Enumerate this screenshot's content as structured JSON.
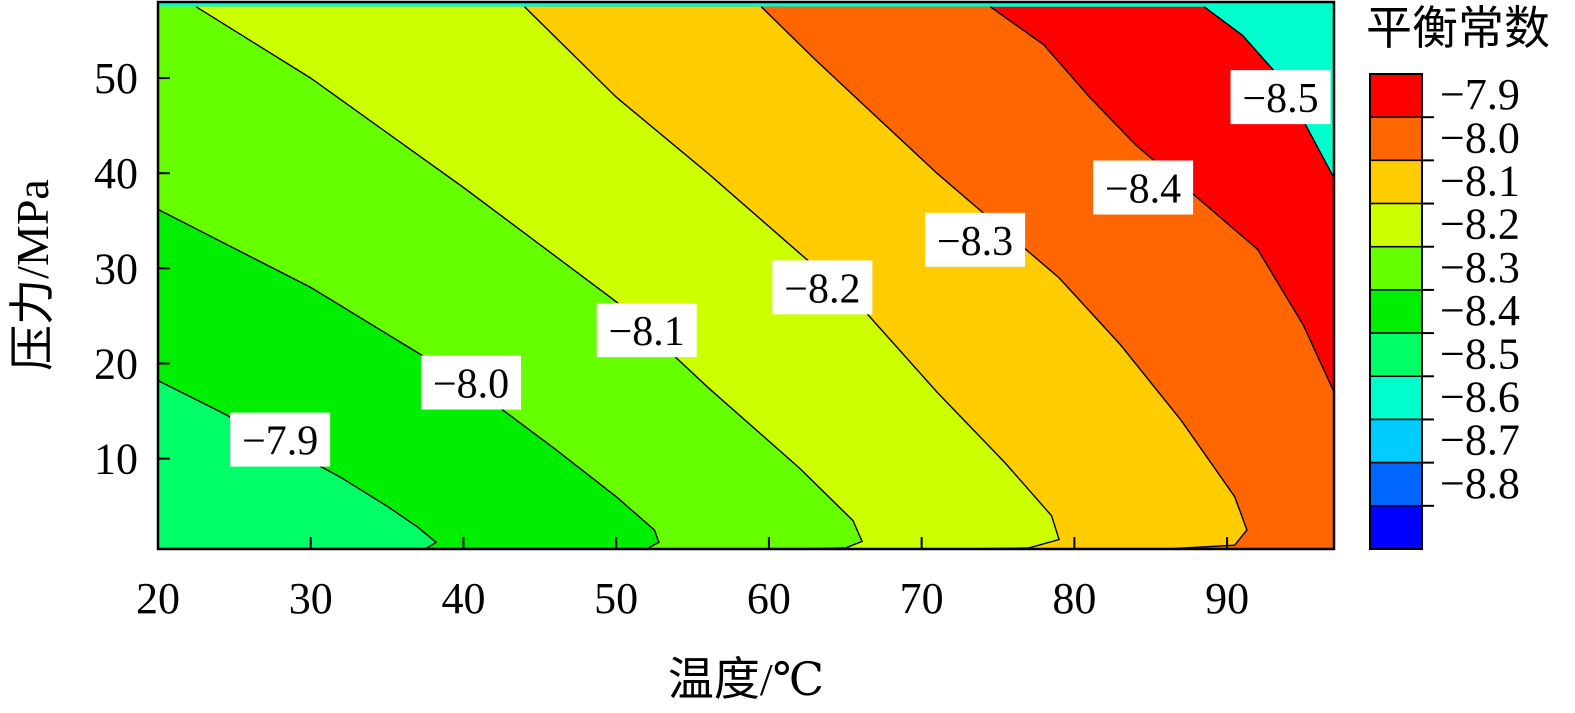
{
  "chart_data": {
    "type": "contour",
    "xlabel": "温度/℃",
    "ylabel": "压力/MPa",
    "xlim": [
      20,
      97
    ],
    "ylim": [
      0.5,
      58
    ],
    "xticks": [
      {
        "value": 20,
        "label": "20"
      },
      {
        "value": 30,
        "label": "30"
      },
      {
        "value": 40,
        "label": "40"
      },
      {
        "value": 50,
        "label": "50"
      },
      {
        "value": 60,
        "label": "60"
      },
      {
        "value": 70,
        "label": "70"
      },
      {
        "value": 80,
        "label": "80"
      },
      {
        "value": 90,
        "label": "90"
      }
    ],
    "yticks": [
      {
        "value": 10,
        "label": "10"
      },
      {
        "value": 20,
        "label": "20"
      },
      {
        "value": 30,
        "label": "30"
      },
      {
        "value": 40,
        "label": "40"
      },
      {
        "value": 50,
        "label": "50"
      }
    ],
    "colorbar": {
      "title": "平衡常数",
      "levels": [
        {
          "label": "−7.9",
          "color": "#ff0000"
        },
        {
          "label": "−8.0",
          "color": "#ff6600"
        },
        {
          "label": "−8.1",
          "color": "#ffcc00"
        },
        {
          "label": "−8.2",
          "color": "#ccff00"
        },
        {
          "label": "−8.3",
          "color": "#66ff00"
        },
        {
          "label": "−8.4",
          "color": "#00ee00"
        },
        {
          "label": "−8.5",
          "color": "#00ff66"
        },
        {
          "label": "−8.6",
          "color": "#00ffcc"
        },
        {
          "label": "−8.7",
          "color": "#00ccff"
        },
        {
          "label": "−8.8",
          "color": "#0066ff"
        },
        {
          "label": "",
          "color": "#0000ff"
        }
      ]
    },
    "contours": [
      {
        "level": "−7.9",
        "label_at": [
          28,
          12
        ],
        "points": [
          [
            20,
            18.2
          ],
          [
            24,
            15
          ],
          [
            28,
            11.5
          ],
          [
            32,
            8
          ],
          [
            35,
            5
          ],
          [
            37,
            2.8
          ],
          [
            38.2,
            1.2
          ],
          [
            37.5,
            0.5
          ]
        ]
      },
      {
        "level": "−8.0",
        "label_at": [
          40.5,
          18
        ],
        "points": [
          [
            20,
            36.2
          ],
          [
            30,
            28
          ],
          [
            40,
            18.2
          ],
          [
            46,
            11
          ],
          [
            50,
            6
          ],
          [
            52.5,
            2.5
          ],
          [
            52.8,
            1.2
          ],
          [
            52,
            0.5
          ]
        ]
      },
      {
        "level": "−8.1",
        "label_at": [
          52,
          23.5
        ],
        "points": [
          [
            22.5,
            57.5
          ],
          [
            30,
            50
          ],
          [
            40,
            38.5
          ],
          [
            50,
            26.5
          ],
          [
            56,
            17.5
          ],
          [
            62,
            9
          ],
          [
            65.5,
            3.5
          ],
          [
            66.1,
            1.3
          ],
          [
            65,
            0.6
          ],
          [
            62,
            0.5
          ]
        ]
      },
      {
        "level": "−8.2",
        "label_at": [
          63.5,
          28
        ],
        "points": [
          [
            44,
            57.5
          ],
          [
            50,
            48
          ],
          [
            56,
            40
          ],
          [
            61,
            33
          ],
          [
            66,
            26
          ],
          [
            71,
            17
          ],
          [
            75.5,
            9.5
          ],
          [
            78.5,
            4
          ],
          [
            79,
            1.5
          ],
          [
            77,
            0.6
          ],
          [
            73,
            0.5
          ]
        ]
      },
      {
        "level": "−8.3",
        "label_at": [
          73.5,
          33
        ],
        "points": [
          [
            59.5,
            57.5
          ],
          [
            63,
            52
          ],
          [
            67,
            46
          ],
          [
            71,
            40
          ],
          [
            75,
            34.5
          ],
          [
            79,
            29
          ],
          [
            83,
            22
          ],
          [
            87,
            14
          ],
          [
            90.5,
            6
          ],
          [
            91.3,
            2.5
          ],
          [
            90.5,
            0.9
          ],
          [
            86,
            0.5
          ]
        ]
      },
      {
        "level": "−8.4",
        "label_at": [
          84.5,
          38.5
        ],
        "points": [
          [
            74.5,
            57.5
          ],
          [
            78,
            53.5
          ],
          [
            81,
            48
          ],
          [
            84,
            43
          ],
          [
            88,
            37.5
          ],
          [
            92,
            32
          ],
          [
            95,
            24
          ],
          [
            97,
            17
          ]
        ]
      },
      {
        "level": "−8.5",
        "label_at": [
          93.5,
          48
        ],
        "points": [
          [
            88.5,
            57.5
          ],
          [
            91,
            54.5
          ],
          [
            93.5,
            50
          ],
          [
            95.5,
            44
          ],
          [
            97,
            39.5
          ]
        ]
      }
    ]
  }
}
